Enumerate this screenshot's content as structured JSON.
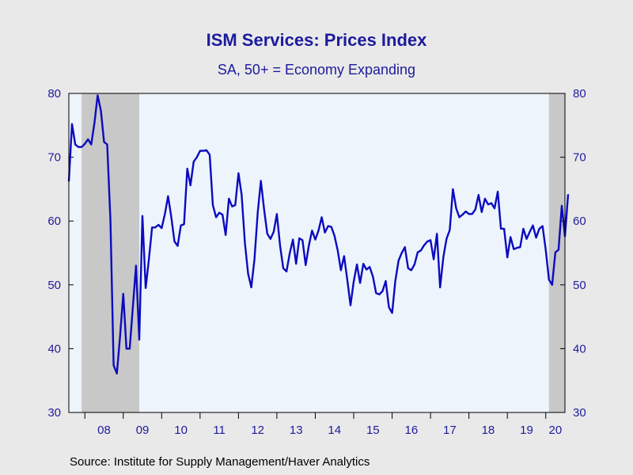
{
  "title": "ISM Services: Prices Index",
  "subtitle": "SA, 50+ = Economy Expanding",
  "source": "Source:  Institute for Supply Management/Haver Analytics",
  "colors": {
    "line": "#0b0bbf",
    "plot_background": "#edf4fc",
    "recession_shading": "#c8c8c8",
    "text": "#1c1c9c",
    "page_background": "#eae9e9"
  },
  "chart_data": {
    "type": "line",
    "title": "ISM Services: Prices Index",
    "subtitle": "SA, 50+ = Economy Expanding",
    "xlabel": "",
    "ylabel": "",
    "ylim": [
      30,
      80
    ],
    "yticks": [
      30,
      40,
      50,
      60,
      70,
      80
    ],
    "y_axis_left": true,
    "y_axis_right": true,
    "grid": false,
    "xlim": [
      "2007-08",
      "2020-07"
    ],
    "x_tick_labels": [
      "08",
      "09",
      "10",
      "11",
      "12",
      "13",
      "14",
      "15",
      "16",
      "17",
      "18",
      "19",
      "20"
    ],
    "recessions": [
      {
        "start": "2007-12",
        "end": "2009-06"
      },
      {
        "start": "2020-02",
        "end": "2020-07"
      }
    ],
    "series": [
      {
        "start": "2007-08",
        "frequency": "monthly",
        "values": [
          66.2,
          75.2,
          72.0,
          71.6,
          71.6,
          72.1,
          72.8,
          72.0,
          75.4,
          79.7,
          77.3,
          72.4,
          72.0,
          60.0,
          37.4,
          36.1,
          41.9,
          48.6,
          40.0,
          40.0,
          46.5,
          53.0,
          41.4,
          60.8,
          49.5,
          53.9,
          59.0,
          59.0,
          59.4,
          58.9,
          61.1,
          63.9,
          60.7,
          56.8,
          56.1,
          59.3,
          59.5,
          68.2,
          65.6,
          69.3,
          70.0,
          71.0,
          71.0,
          71.1,
          70.4,
          62.5,
          60.6,
          61.3,
          61.0,
          57.8,
          63.5,
          62.3,
          62.5,
          67.5,
          64.1,
          56.6,
          51.8,
          49.6,
          54.0,
          61.3,
          66.3,
          61.8,
          58.0,
          57.2,
          58.3,
          61.1,
          56.1,
          52.6,
          52.1,
          54.9,
          57.1,
          53.3,
          57.3,
          57.0,
          53.1,
          56.2,
          58.5,
          57.1,
          58.5,
          60.6,
          58.2,
          59.2,
          59.1,
          57.7,
          55.4,
          52.3,
          54.5,
          50.8,
          46.8,
          50.5,
          53.2,
          50.3,
          53.3,
          52.4,
          52.8,
          51.3,
          48.7,
          48.5,
          49.0,
          50.6,
          46.5,
          45.6,
          50.6,
          53.8,
          55.0,
          55.9,
          52.6,
          52.3,
          53.2,
          55.1,
          55.4,
          56.2,
          56.8,
          57.0,
          54.0,
          58.0,
          49.6,
          54.3,
          57.2,
          58.6,
          65.0,
          62.0,
          60.6,
          61.0,
          61.5,
          61.1,
          61.1,
          61.8,
          64.1,
          61.4,
          63.5,
          62.6,
          62.8,
          62.0,
          64.6,
          58.8,
          58.8,
          54.3,
          57.5,
          55.6,
          55.8,
          55.9,
          58.8,
          57.2,
          58.3,
          59.3,
          57.4,
          58.8,
          59.2,
          55.5,
          50.8,
          50.0,
          55.1,
          55.5,
          62.4,
          57.6,
          64.2
        ]
      }
    ]
  }
}
